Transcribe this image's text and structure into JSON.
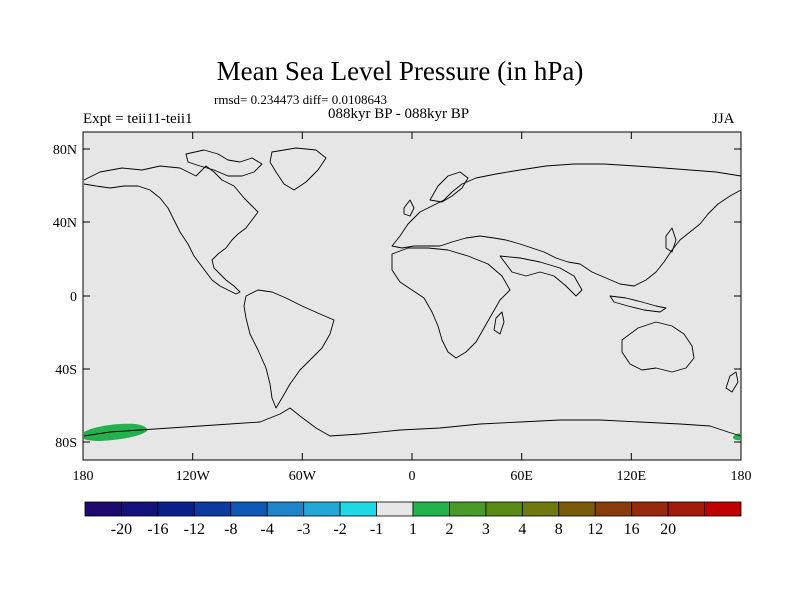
{
  "title": "Mean Sea Level Pressure (in hPa)",
  "stats": "rmsd= 0.234473 diff= 0.0108643",
  "left_label": "Expt = teii11-teii1",
  "center_label": "088kyr BP - 088kyr BP",
  "right_label": "JJA",
  "map": {
    "background_color": "#e6e6e6",
    "lat_ticks": [
      {
        "value": 80,
        "label": "80N"
      },
      {
        "value": 40,
        "label": "40N"
      },
      {
        "value": 0,
        "label": "0"
      },
      {
        "value": -40,
        "label": "40S"
      },
      {
        "value": -80,
        "label": "80S"
      }
    ],
    "lon_ticks": [
      {
        "value": -180,
        "label": "180"
      },
      {
        "value": -120,
        "label": "120W"
      },
      {
        "value": -60,
        "label": "60W"
      },
      {
        "value": 0,
        "label": "0"
      },
      {
        "value": 60,
        "label": "60E"
      },
      {
        "value": 120,
        "label": "120E"
      },
      {
        "value": 180,
        "label": "180"
      }
    ],
    "anomaly_regions": [
      {
        "color": "#22b14c",
        "lon_center": -160,
        "lat_center": -82,
        "value_range": "1 to 2"
      }
    ]
  },
  "colorbar": {
    "colors": [
      "#1e0a6e",
      "#12127a",
      "#0a1f8a",
      "#0d3aa0",
      "#1058b8",
      "#1e86c8",
      "#22a8d8",
      "#1ed8e6",
      "#e6e6e6",
      "#22b44c",
      "#4a9a2a",
      "#5a8a16",
      "#6e7a10",
      "#7a5a0a",
      "#8a3c0a",
      "#962a0a",
      "#a21a0a",
      "#c00000"
    ],
    "labels": [
      "-20",
      "-16",
      "-12",
      "-8",
      "-4",
      "-3",
      "-2",
      "-1",
      "1",
      "2",
      "3",
      "4",
      "8",
      "12",
      "16",
      "20"
    ]
  }
}
